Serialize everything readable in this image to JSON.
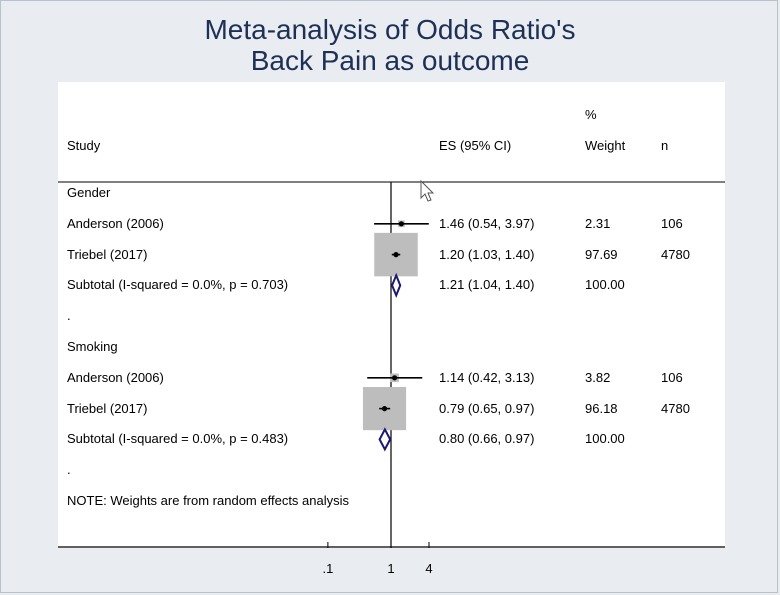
{
  "title": {
    "line1": "Meta-analysis of Odds Ratio's",
    "line2": "Back Pain as outcome"
  },
  "columns": {
    "study": "Study",
    "es": "ES (95% CI)",
    "weight_pct": "%",
    "weight": "Weight",
    "n": "n"
  },
  "groups": [
    {
      "label": "Gender"
    },
    {
      "label": "Smoking"
    }
  ],
  "separator_dots": [
    ".",
    "."
  ],
  "note": "NOTE: Weights are from random effects analysis",
  "colors": {
    "background": "#e9edf1",
    "title": "#1e3055",
    "box": "#bdbdbd",
    "diamond": "#1a1a6e"
  },
  "chart_data": {
    "type": "forest",
    "title": "Meta-analysis of Odds Ratio's Back Pain as outcome",
    "x_scale": "log",
    "x_ticks": [
      {
        "value": 0.1,
        "label": ".1"
      },
      {
        "value": 1,
        "label": "1"
      },
      {
        "value": 4,
        "label": "4"
      }
    ],
    "null_line": 1,
    "rows": [
      {
        "kind": "group",
        "group": 0
      },
      {
        "kind": "study",
        "group": 0,
        "study": "Anderson (2006)",
        "es": 1.46,
        "lo": 0.54,
        "hi": 3.97,
        "es_text": "1.46 (0.54, 3.97)",
        "weight": 2.31,
        "weight_text": "2.31",
        "n": "106"
      },
      {
        "kind": "study",
        "group": 0,
        "study": "Triebel (2017)",
        "es": 1.2,
        "lo": 1.03,
        "hi": 1.4,
        "es_text": "1.20 (1.03, 1.40)",
        "weight": 97.69,
        "weight_text": "97.69",
        "n": "4780"
      },
      {
        "kind": "subtotal",
        "group": 0,
        "study": "Subtotal  (I-squared = 0.0%, p = 0.703)",
        "es": 1.21,
        "lo": 1.04,
        "hi": 1.4,
        "es_text": "1.21 (1.04, 1.40)",
        "weight_text": "100.00",
        "n": ""
      },
      {
        "kind": "dot",
        "group": 0
      },
      {
        "kind": "group",
        "group": 1
      },
      {
        "kind": "study",
        "group": 1,
        "study": "Anderson (2006)",
        "es": 1.14,
        "lo": 0.42,
        "hi": 3.13,
        "es_text": "1.14 (0.42, 3.13)",
        "weight": 3.82,
        "weight_text": "3.82",
        "n": "106"
      },
      {
        "kind": "study",
        "group": 1,
        "study": "Triebel (2017)",
        "es": 0.79,
        "lo": 0.65,
        "hi": 0.97,
        "es_text": "0.79 (0.65, 0.97)",
        "weight": 96.18,
        "weight_text": "96.18",
        "n": "4780"
      },
      {
        "kind": "subtotal",
        "group": 1,
        "study": "Subtotal  (I-squared = 0.0%, p = 0.483)",
        "es": 0.8,
        "lo": 0.66,
        "hi": 0.97,
        "es_text": "0.80 (0.66, 0.97)",
        "weight_text": "100.00",
        "n": ""
      },
      {
        "kind": "dot",
        "group": 1
      },
      {
        "kind": "note"
      }
    ]
  }
}
